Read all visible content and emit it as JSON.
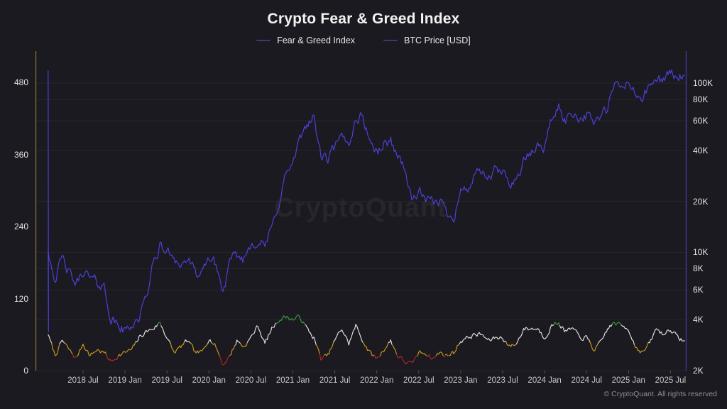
{
  "title": "Crypto Fear & Greed Index",
  "legend": [
    {
      "label": "Fear & Greed Index"
    },
    {
      "label": "BTC Price [USD]"
    }
  ],
  "watermark": "CryptoQuant",
  "footer": "© CryptoQuant. All rights reserved",
  "colors": {
    "background": "#1a1a20",
    "title": "#f2f2f3",
    "legend_marker": "#3d3781",
    "btc_line": "#4b3fd1",
    "axis_left_line": "#7e6b30",
    "axis_right_line": "#43389b",
    "grid_line": "#26262c",
    "tick_mark": "#55555a",
    "axis_label": "#e3e3e5",
    "x_label": "#c9c9cd",
    "footer_color": "#8e8e95",
    "fg_extreme_fear": "#b02823",
    "fg_fear": "#c79a1e",
    "fg_neutral_greed": "#e4e4e4",
    "fg_extreme_greed": "#3c9e3d"
  },
  "chart_data": {
    "type": "line",
    "title": "Crypto Fear & Greed Index",
    "grid": "horizontal-log",
    "legend_position": "top-center",
    "x_ticks": [
      "2018 Jul",
      "2019 Jan",
      "2019 Jul",
      "2020 Jan",
      "2020 Jul",
      "2021 Jan",
      "2021 Jul",
      "2022 Jan",
      "2022 Jul",
      "2023 Jan",
      "2023 Jul",
      "2024 Jan",
      "2024 Jul",
      "2025 Jan",
      "2025 Jul"
    ],
    "left_axis": {
      "scale": "linear",
      "tick_values": [
        0,
        120,
        240,
        360,
        480
      ],
      "range": [
        0,
        480
      ]
    },
    "right_axis": {
      "scale": "log",
      "tick_values": [
        2000,
        4000,
        6000,
        8000,
        10000,
        20000,
        40000,
        60000,
        80000,
        100000
      ],
      "tick_labels": [
        "2K",
        "4K",
        "6K",
        "8K",
        "10K",
        "20K",
        "40K",
        "60K",
        "80K",
        "100K"
      ],
      "range": [
        2000,
        150000
      ]
    },
    "months": [
      "2018-02",
      "2018-03",
      "2018-04",
      "2018-05",
      "2018-06",
      "2018-07",
      "2018-08",
      "2018-09",
      "2018-10",
      "2018-11",
      "2018-12",
      "2019-01",
      "2019-02",
      "2019-03",
      "2019-04",
      "2019-05",
      "2019-06",
      "2019-07",
      "2019-08",
      "2019-09",
      "2019-10",
      "2019-11",
      "2019-12",
      "2020-01",
      "2020-02",
      "2020-03",
      "2020-04",
      "2020-05",
      "2020-06",
      "2020-07",
      "2020-08",
      "2020-09",
      "2020-10",
      "2020-11",
      "2020-12",
      "2021-01",
      "2021-02",
      "2021-03",
      "2021-04",
      "2021-05",
      "2021-06",
      "2021-07",
      "2021-08",
      "2021-09",
      "2021-10",
      "2021-11",
      "2021-12",
      "2022-01",
      "2022-02",
      "2022-03",
      "2022-04",
      "2022-05",
      "2022-06",
      "2022-07",
      "2022-08",
      "2022-09",
      "2022-10",
      "2022-11",
      "2022-12",
      "2023-01",
      "2023-02",
      "2023-03",
      "2023-04",
      "2023-05",
      "2023-06",
      "2023-07",
      "2023-08",
      "2023-09",
      "2023-10",
      "2023-11",
      "2023-12",
      "2024-01",
      "2024-02",
      "2024-03",
      "2024-04",
      "2024-05",
      "2024-06",
      "2024-07",
      "2024-08",
      "2024-09",
      "2024-10",
      "2024-11",
      "2024-12",
      "2025-01",
      "2025-02",
      "2025-03",
      "2025-04",
      "2025-05",
      "2025-06",
      "2025-07",
      "2025-08",
      "2025-09"
    ],
    "series": [
      {
        "name": "Fear & Greed Index",
        "axis": "left",
        "value_range": [
          0,
          100
        ],
        "bands": [
          {
            "max": 25,
            "color": "#b02823"
          },
          {
            "max": 46,
            "color": "#c79a1e"
          },
          {
            "max": 76,
            "color": "#e4e4e4"
          },
          {
            "max": 1000,
            "color": "#3c9e3d"
          }
        ],
        "values": [
          60,
          25,
          50,
          35,
          20,
          45,
          25,
          35,
          30,
          15,
          25,
          30,
          35,
          55,
          65,
          70,
          80,
          55,
          30,
          40,
          50,
          30,
          30,
          55,
          40,
          10,
          25,
          50,
          40,
          55,
          75,
          45,
          70,
          85,
          90,
          85,
          90,
          70,
          55,
          20,
          25,
          50,
          70,
          45,
          75,
          50,
          30,
          20,
          35,
          50,
          25,
          15,
          10,
          30,
          30,
          20,
          30,
          25,
          30,
          50,
          55,
          60,
          60,
          50,
          55,
          55,
          40,
          45,
          70,
          70,
          70,
          55,
          75,
          80,
          65,
          70,
          55,
          55,
          35,
          45,
          70,
          80,
          75,
          70,
          40,
          30,
          45,
          70,
          60,
          70,
          55,
          50
        ]
      },
      {
        "name": "BTC Price [USD]",
        "axis": "right",
        "color": "#4b3fd1",
        "start_spike": {
          "top": 118000,
          "bottom": 3400
        },
        "values": [
          10300,
          7000,
          9200,
          7500,
          6400,
          7800,
          7000,
          6600,
          6300,
          4000,
          3700,
          3400,
          3800,
          4100,
          5300,
          8500,
          10800,
          10000,
          9600,
          8300,
          9200,
          7500,
          7200,
          9400,
          8500,
          5800,
          8600,
          9500,
          9100,
          11400,
          11700,
          10800,
          13800,
          19700,
          29000,
          33100,
          45200,
          58800,
          62000,
          37300,
          35000,
          41500,
          47100,
          43800,
          61500,
          64000,
          46200,
          38500,
          43200,
          45500,
          37600,
          31800,
          19900,
          23300,
          20000,
          19400,
          20500,
          17200,
          16500,
          23100,
          23500,
          28500,
          29200,
          27200,
          30500,
          29200,
          26000,
          26900,
          34700,
          37700,
          42300,
          42600,
          61200,
          71300,
          60600,
          67500,
          62700,
          64600,
          59000,
          63300,
          70200,
          96400,
          93400,
          102000,
          84300,
          82500,
          94200,
          104000,
          107000,
          115500,
          108000,
          111000
        ]
      }
    ]
  }
}
